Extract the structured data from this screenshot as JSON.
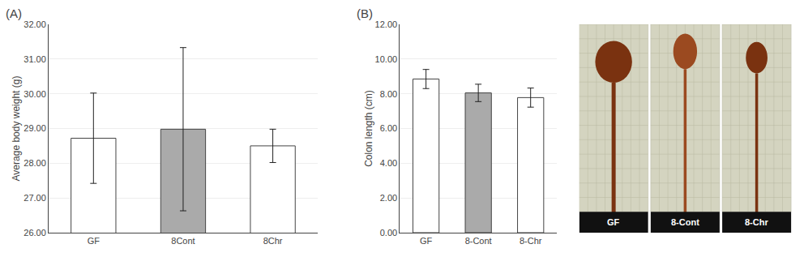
{
  "chart_data": [
    {
      "type": "bar",
      "title": "(A)",
      "categories": [
        "GF",
        "8Cont",
        "8Chr"
      ],
      "values": [
        28.72,
        28.98,
        28.5
      ],
      "errors": [
        1.3,
        2.35,
        0.48
      ],
      "ylabel": "Average body weight (g)",
      "ylim": [
        26.0,
        32.0
      ],
      "yticks": [
        {
          "value": 26.0,
          "label": "26.00"
        },
        {
          "value": 27.0,
          "label": "27.00"
        },
        {
          "value": 28.0,
          "label": "28.00"
        },
        {
          "value": 29.0,
          "label": "29.00"
        },
        {
          "value": 30.0,
          "label": "30.00"
        },
        {
          "value": 31.0,
          "label": "31.00"
        },
        {
          "value": 32.0,
          "label": "32.00"
        }
      ],
      "colors": [
        "white",
        "#aaaaaa",
        "white"
      ]
    },
    {
      "type": "bar",
      "title": "(B)",
      "categories": [
        "GF",
        "8-Cont",
        "8-Chr"
      ],
      "values": [
        8.85,
        8.05,
        7.78
      ],
      "errors": [
        0.55,
        0.5,
        0.55
      ],
      "ylabel": "Colon length (cm)",
      "ylim": [
        0.0,
        12.0
      ],
      "yticks": [
        {
          "value": 0.0,
          "label": "0.00"
        },
        {
          "value": 2.0,
          "label": "2.00"
        },
        {
          "value": 4.0,
          "label": "4.00"
        },
        {
          "value": 6.0,
          "label": "6.00"
        },
        {
          "value": 8.0,
          "label": "8.00"
        },
        {
          "value": 10.0,
          "label": "10.00"
        },
        {
          "value": 12.0,
          "label": "12.00"
        }
      ],
      "colors": [
        "white",
        "#aaaaaa",
        "white"
      ]
    },
    {
      "type": "illustration",
      "annotations": [
        "GF",
        "8-Cont",
        "8-Chr"
      ],
      "colors": [
        "#7a3210",
        "#9b4a20",
        "#7a3210"
      ],
      "color": "#d4d4c0"
    }
  ]
}
